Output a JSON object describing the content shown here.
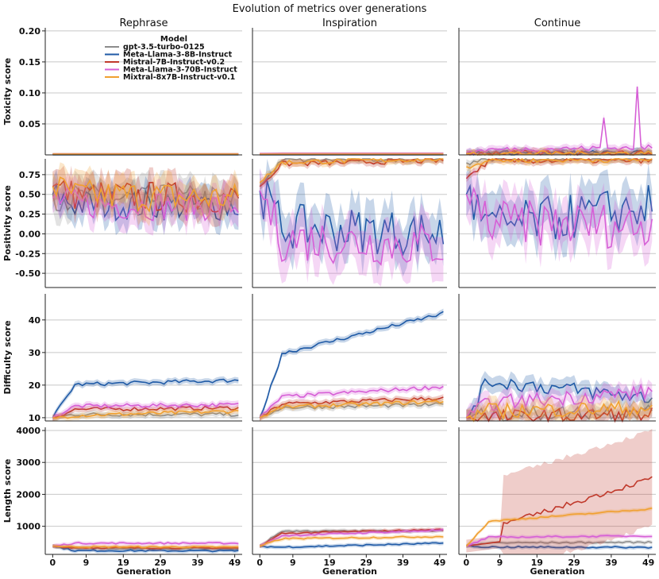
{
  "chart_data": {
    "type": "line",
    "title": "Evolution of metrics over generations",
    "columns": [
      "Rephrase",
      "Inspiration",
      "Continue"
    ],
    "rows": [
      {
        "ylabel": "Toxicity score",
        "ylim": [
          0,
          0.205
        ],
        "yticks": [
          0.05,
          0.1,
          0.15,
          0.2
        ],
        "ytick_labels": [
          "0.05",
          "0.10",
          "0.15",
          "0.20"
        ]
      },
      {
        "ylabel": "Positivity score",
        "ylim": [
          -0.68,
          0.95
        ],
        "yticks": [
          -0.5,
          -0.25,
          0.0,
          0.25,
          0.5,
          0.75
        ],
        "ytick_labels": [
          "-0.50",
          "-0.25",
          "0.00",
          "0.25",
          "0.50",
          "0.75"
        ]
      },
      {
        "ylabel": "Difficulty score",
        "ylim": [
          9,
          48
        ],
        "yticks": [
          10,
          20,
          30,
          40
        ],
        "ytick_labels": [
          "10",
          "20",
          "30",
          "40"
        ]
      },
      {
        "ylabel": "Length score",
        "ylim": [
          120,
          4100
        ],
        "yticks": [
          1000,
          2000,
          3000,
          4000
        ],
        "ytick_labels": [
          "1000",
          "2000",
          "3000",
          "4000"
        ]
      }
    ],
    "xlabel": "Generation",
    "xlim": [
      -2,
      51
    ],
    "xticks": [
      0,
      9,
      19,
      29,
      39,
      49
    ],
    "xtick_labels": [
      "0",
      "9",
      "19",
      "29",
      "39",
      "49"
    ],
    "grid": "horizontal",
    "legend": {
      "title": "Model",
      "placement": "top-left of first panel",
      "series": [
        {
          "name": "gpt-3.5-turbo-0125",
          "color": "#8c8c8c"
        },
        {
          "name": "Meta-Llama-3-8B-Instruct",
          "color": "#1f5aa6"
        },
        {
          "name": "Mistral-7B-Instruct-v0.2",
          "color": "#c0392b"
        },
        {
          "name": "Meta-Llama-3-70B-Instruct",
          "color": "#d65fd6"
        },
        {
          "name": "Mixtral-8x7B-Instruct-v0.1",
          "color": "#f0a030"
        }
      ]
    },
    "trends": {
      "toxicity": {
        "Rephrase": [
          [
            0.001,
            0.001,
            0.001
          ],
          [
            0.0,
            0.0,
            0.0
          ],
          [
            0.001,
            0.001,
            0.001
          ],
          [
            0.001,
            0.001,
            0.001
          ],
          [
            0.001,
            0.001,
            0.001
          ]
        ],
        "Inspiration": [
          [
            0.001,
            0.001,
            0.001
          ],
          [
            0.0,
            0.0,
            0.0
          ],
          [
            0.001,
            0.002,
            0.002
          ],
          [
            0.002,
            0.002,
            0.002
          ],
          [
            0.001,
            0.001,
            0.001
          ]
        ],
        "Continue": [
          [
            0.003,
            0.004,
            0.004
          ],
          [
            0.002,
            0.003,
            0.003
          ],
          [
            0.002,
            0.003,
            0.003
          ],
          [
            0.004,
            0.008,
            0.012
          ],
          [
            0.002,
            0.002,
            0.003
          ]
        ]
      },
      "positivity": {
        "Rephrase": [
          [
            0.5,
            0.45,
            0.42
          ],
          [
            0.5,
            0.38,
            0.35
          ],
          [
            0.6,
            0.5,
            0.45
          ],
          [
            0.45,
            0.38,
            0.35
          ],
          [
            0.6,
            0.5,
            0.45
          ]
        ],
        "Inspiration": [
          [
            0.6,
            0.93,
            0.95
          ],
          [
            0.55,
            0.1,
            0.0
          ],
          [
            0.6,
            0.88,
            0.93
          ],
          [
            0.55,
            -0.05,
            -0.15
          ],
          [
            0.65,
            0.9,
            0.95
          ]
        ],
        "Continue": [
          [
            0.9,
            0.95,
            0.95
          ],
          [
            0.5,
            0.05,
            0.35
          ],
          [
            0.7,
            0.92,
            0.93
          ],
          [
            0.5,
            0.15,
            0.1
          ],
          [
            0.85,
            0.93,
            0.94
          ]
        ]
      },
      "difficulty": {
        "Rephrase": [
          [
            10,
            11,
            11
          ],
          [
            10,
            20,
            21.5
          ],
          [
            10,
            12.5,
            13
          ],
          [
            10,
            13.5,
            14
          ],
          [
            10,
            10.5,
            12
          ]
        ],
        "Inspiration": [
          [
            10,
            13,
            14
          ],
          [
            10,
            28,
            42
          ],
          [
            10,
            14,
            16
          ],
          [
            10,
            16,
            19.5
          ],
          [
            10,
            13,
            15
          ]
        ],
        "Continue": [
          [
            10,
            11,
            12
          ],
          [
            10,
            22,
            16
          ],
          [
            10,
            10,
            11
          ],
          [
            10,
            14,
            18
          ],
          [
            10,
            12,
            13
          ]
        ]
      },
      "length": {
        "Rephrase": [
          [
            380,
            310,
            300
          ],
          [
            380,
            240,
            230
          ],
          [
            380,
            330,
            320
          ],
          [
            380,
            470,
            470
          ],
          [
            380,
            360,
            350
          ]
        ],
        "Inspiration": [
          [
            380,
            850,
            850
          ],
          [
            380,
            330,
            470
          ],
          [
            380,
            760,
            900
          ],
          [
            380,
            680,
            880
          ],
          [
            380,
            600,
            680
          ]
        ],
        "Continue": [
          [
            380,
            480,
            500
          ],
          [
            380,
            350,
            340
          ],
          [
            380,
            700,
            2500
          ],
          [
            380,
            650,
            700
          ],
          [
            380,
            1100,
            1550
          ]
        ]
      }
    }
  }
}
